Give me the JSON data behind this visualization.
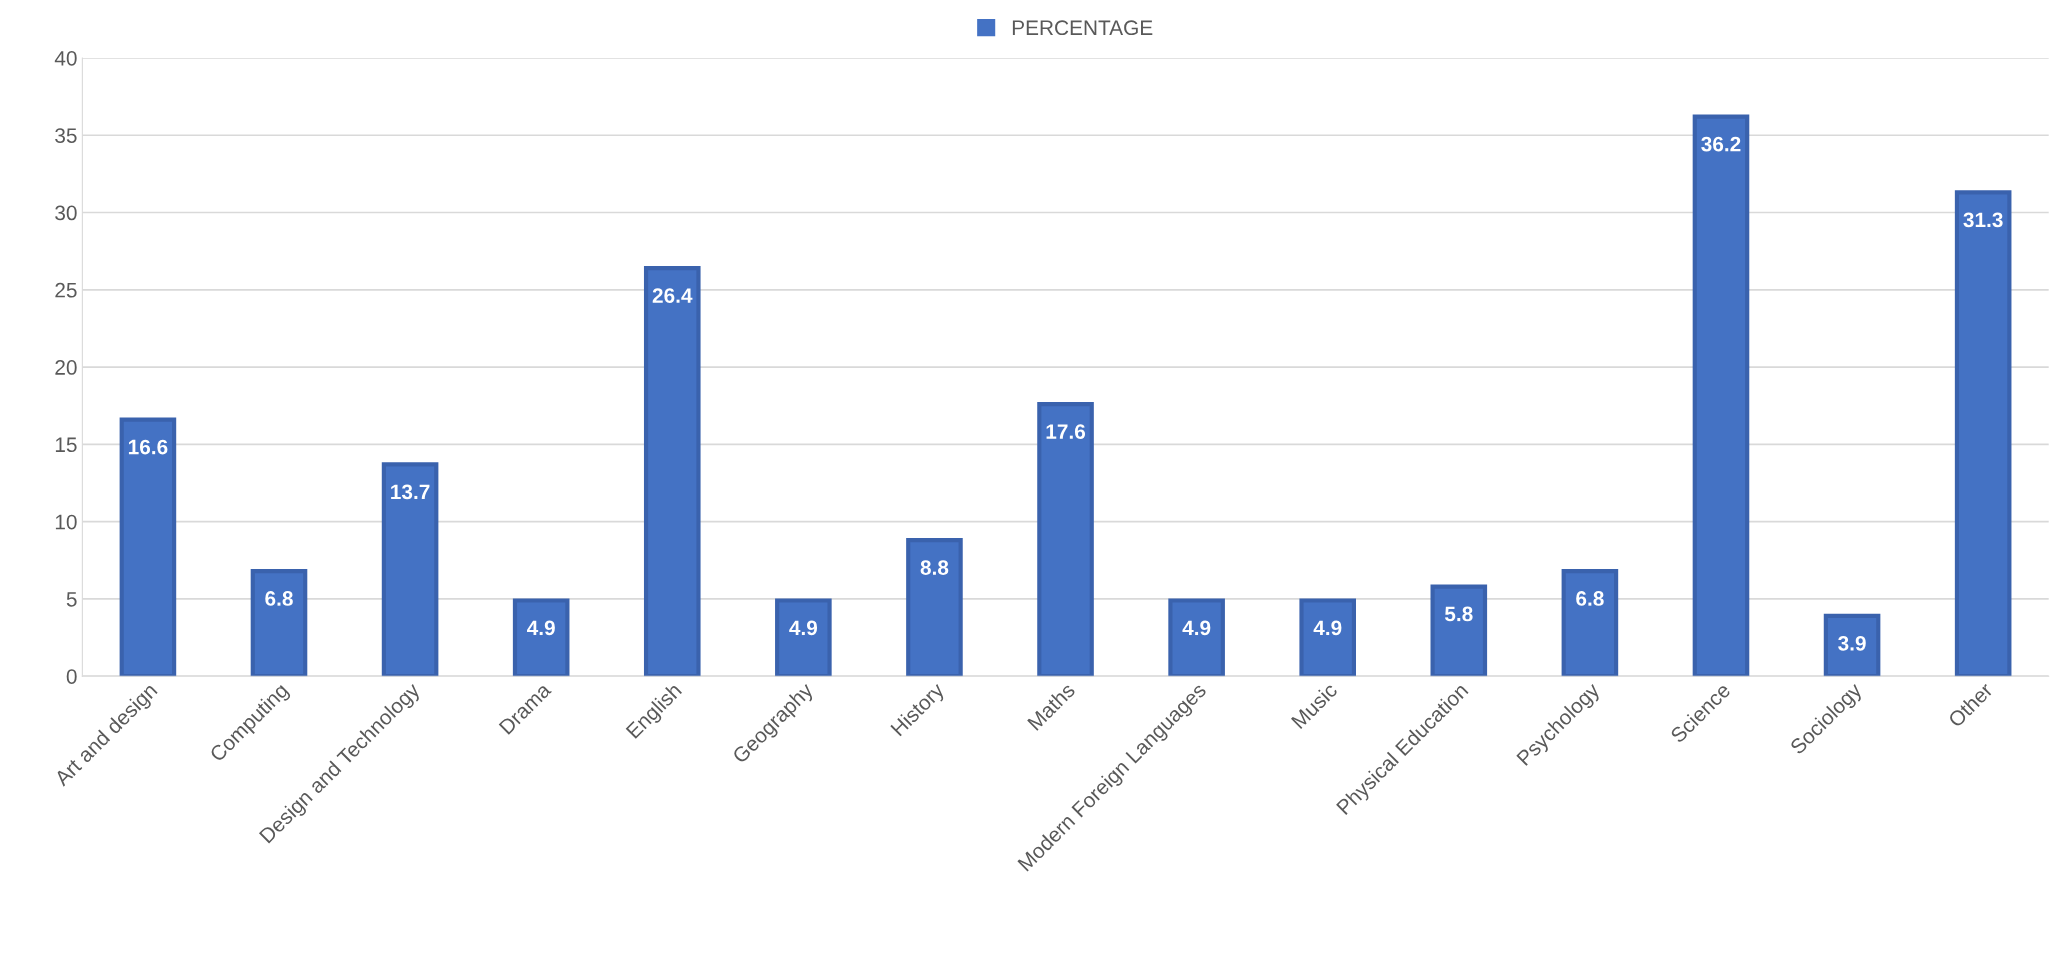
{
  "chart_data": {
    "type": "bar",
    "categories": [
      "Art and design",
      "Computing",
      "Design and Technology",
      "Drama",
      "English",
      "Geography",
      "History",
      "Maths",
      "Modern Foreign Languages",
      "Music",
      "Physical Education",
      "Psychology",
      "Science",
      "Sociology",
      "Other"
    ],
    "series": [
      {
        "name": "PERCENTAGE",
        "color": "#4472c4",
        "values": [
          16.6,
          6.8,
          13.7,
          4.9,
          26.4,
          4.9,
          8.8,
          17.6,
          4.9,
          4.9,
          5.8,
          6.8,
          36.2,
          3.9,
          31.3
        ]
      }
    ],
    "ylim": [
      0,
      40
    ],
    "yticks": [
      0,
      5,
      10,
      15,
      20,
      25,
      30,
      35,
      40
    ],
    "grid": "y",
    "legend": "top",
    "data_labels": true
  }
}
